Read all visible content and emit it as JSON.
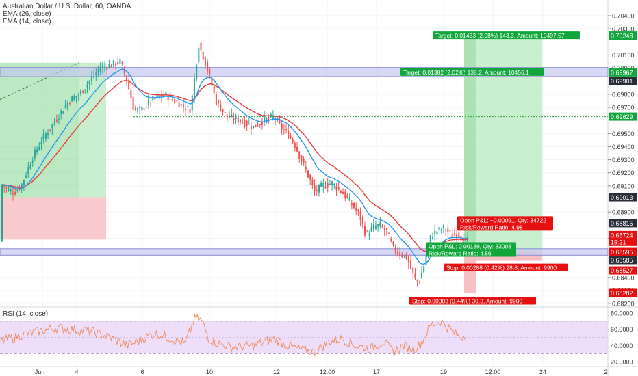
{
  "header": {
    "symbol": "Australian Dollar / U.S. Dollar, 60, OANDA",
    "ema26": "EMA (26, close)",
    "ema14": "EMA (14, close)",
    "rsi_label": "RSI (14, close)"
  },
  "colors": {
    "up": "#26a69a",
    "down": "#ef5350",
    "ema_fast": "#2196f3",
    "ema_slow": "#e53935",
    "green_label": "#11a63b",
    "red_label": "#e61010",
    "dark_label": "#2a2e39",
    "band": "#8a8fd6",
    "dotted": "#2a9d3a",
    "rsi_line": "#f08a5d",
    "rsi_band": "#ead6f7"
  },
  "chart_data": {
    "type": "candlestick",
    "price_ylim": [
      0.6818,
      0.7052
    ],
    "y_ticks": [
      "0.70400",
      "0.70300",
      "0.70100",
      "0.70000",
      "0.69800",
      "0.69700",
      "0.69500",
      "0.69400",
      "0.69300",
      "0.69200",
      "0.69100",
      "0.68900",
      "0.68700",
      "0.68400",
      "0.68300",
      "0.68200"
    ],
    "x_ticks": [
      "Jun",
      "4",
      "6",
      "10",
      "12",
      "12:00",
      "17",
      "19",
      "12:00",
      "24",
      "2"
    ],
    "price_tags": [
      {
        "value": "0.70248",
        "style": "green"
      },
      {
        "value": "0.69967",
        "style": "green"
      },
      {
        "value": "0.69901",
        "style": "dark"
      },
      {
        "value": "0.69629",
        "style": "green"
      },
      {
        "value": "0.69013",
        "style": "dark"
      },
      {
        "value": "0.68815",
        "style": "dark"
      },
      {
        "value": "0.68724",
        "style": "red"
      },
      {
        "value": "19:21",
        "style": "red"
      },
      {
        "value": "0.68595",
        "style": "red"
      },
      {
        "value": "0.68585",
        "style": "dark"
      },
      {
        "value": "0.68527",
        "style": "red"
      },
      {
        "value": "0.68282",
        "style": "red"
      }
    ],
    "callouts": [
      {
        "text": "Target: 0.01433 (2.08%) 143.3, Amount: 10497.57",
        "style": "green"
      },
      {
        "text": "Target: 0.01382 (2.02%) 138.2, Amount: 10456.1",
        "style": "green"
      },
      {
        "text": "Open P&L: −0.00091, Qty: 34722",
        "style": "red"
      },
      {
        "text": "Risk/Reward Ratio: 4.98",
        "style": "red"
      },
      {
        "text": "Open P&L: 0.00139, Qty: 33003",
        "style": "green"
      },
      {
        "text": "Risk/Reward Ratio: 4.56",
        "style": "green"
      },
      {
        "text": "Stop: 0.00288 (0.42%) 28.8, Amount: 9900",
        "style": "red"
      },
      {
        "text": "Stop: 0.00303 (0.44%) 30.3, Amount: 9900",
        "style": "red"
      }
    ],
    "rsi_ticks": [
      "80.0000",
      "60.0000",
      "40.0000",
      "20.0000"
    ],
    "rsi_ylim": [
      15,
      85
    ],
    "rsi_band": [
      30,
      70
    ],
    "price_path": [
      [
        0,
        0.6912
      ],
      [
        10,
        0.6907
      ],
      [
        20,
        0.6905
      ],
      [
        30,
        0.691
      ],
      [
        45,
        0.693
      ],
      [
        60,
        0.6945
      ],
      [
        80,
        0.696
      ],
      [
        100,
        0.6975
      ],
      [
        115,
        0.698
      ],
      [
        130,
        0.699
      ],
      [
        145,
        0.7
      ],
      [
        160,
        0.7002
      ],
      [
        175,
        0.7005
      ],
      [
        185,
        0.699
      ],
      [
        195,
        0.6968
      ],
      [
        205,
        0.6968
      ],
      [
        220,
        0.6975
      ],
      [
        240,
        0.698
      ],
      [
        255,
        0.6975
      ],
      [
        270,
        0.697
      ],
      [
        278,
        0.6968
      ],
      [
        285,
        0.6998
      ],
      [
        290,
        0.7018
      ],
      [
        297,
        0.7008
      ],
      [
        305,
        0.6995
      ],
      [
        315,
        0.6975
      ],
      [
        330,
        0.6963
      ],
      [
        350,
        0.696
      ],
      [
        370,
        0.6955
      ],
      [
        385,
        0.696
      ],
      [
        400,
        0.6963
      ],
      [
        410,
        0.6955
      ],
      [
        420,
        0.695
      ],
      [
        430,
        0.6942
      ],
      [
        440,
        0.693
      ],
      [
        450,
        0.6918
      ],
      [
        460,
        0.6905
      ],
      [
        470,
        0.691
      ],
      [
        485,
        0.6912
      ],
      [
        500,
        0.6905
      ],
      [
        515,
        0.6895
      ],
      [
        525,
        0.6888
      ],
      [
        535,
        0.6872
      ],
      [
        545,
        0.6878
      ],
      [
        555,
        0.688
      ],
      [
        565,
        0.6875
      ],
      [
        575,
        0.6862
      ],
      [
        585,
        0.6858
      ],
      [
        595,
        0.6855
      ],
      [
        605,
        0.684
      ],
      [
        612,
        0.6836
      ],
      [
        620,
        0.685
      ],
      [
        630,
        0.6872
      ],
      [
        640,
        0.6876
      ],
      [
        650,
        0.6878
      ],
      [
        660,
        0.6872
      ],
      [
        670,
        0.6873
      ],
      [
        680,
        0.6868
      ]
    ],
    "rsi_path": [
      [
        0,
        45
      ],
      [
        20,
        50
      ],
      [
        40,
        55
      ],
      [
        60,
        58
      ],
      [
        80,
        62
      ],
      [
        100,
        60
      ],
      [
        130,
        58
      ],
      [
        160,
        50
      ],
      [
        185,
        40
      ],
      [
        200,
        45
      ],
      [
        225,
        55
      ],
      [
        245,
        50
      ],
      [
        270,
        42
      ],
      [
        285,
        75
      ],
      [
        295,
        70
      ],
      [
        305,
        48
      ],
      [
        320,
        42
      ],
      [
        340,
        38
      ],
      [
        370,
        40
      ],
      [
        400,
        48
      ],
      [
        420,
        40
      ],
      [
        440,
        35
      ],
      [
        460,
        32
      ],
      [
        480,
        45
      ],
      [
        500,
        48
      ],
      [
        520,
        40
      ],
      [
        540,
        36
      ],
      [
        560,
        45
      ],
      [
        575,
        32
      ],
      [
        590,
        40
      ],
      [
        605,
        35
      ],
      [
        615,
        42
      ],
      [
        630,
        65
      ],
      [
        645,
        70
      ],
      [
        655,
        62
      ],
      [
        665,
        55
      ],
      [
        672,
        50
      ],
      [
        680,
        52
      ]
    ]
  }
}
